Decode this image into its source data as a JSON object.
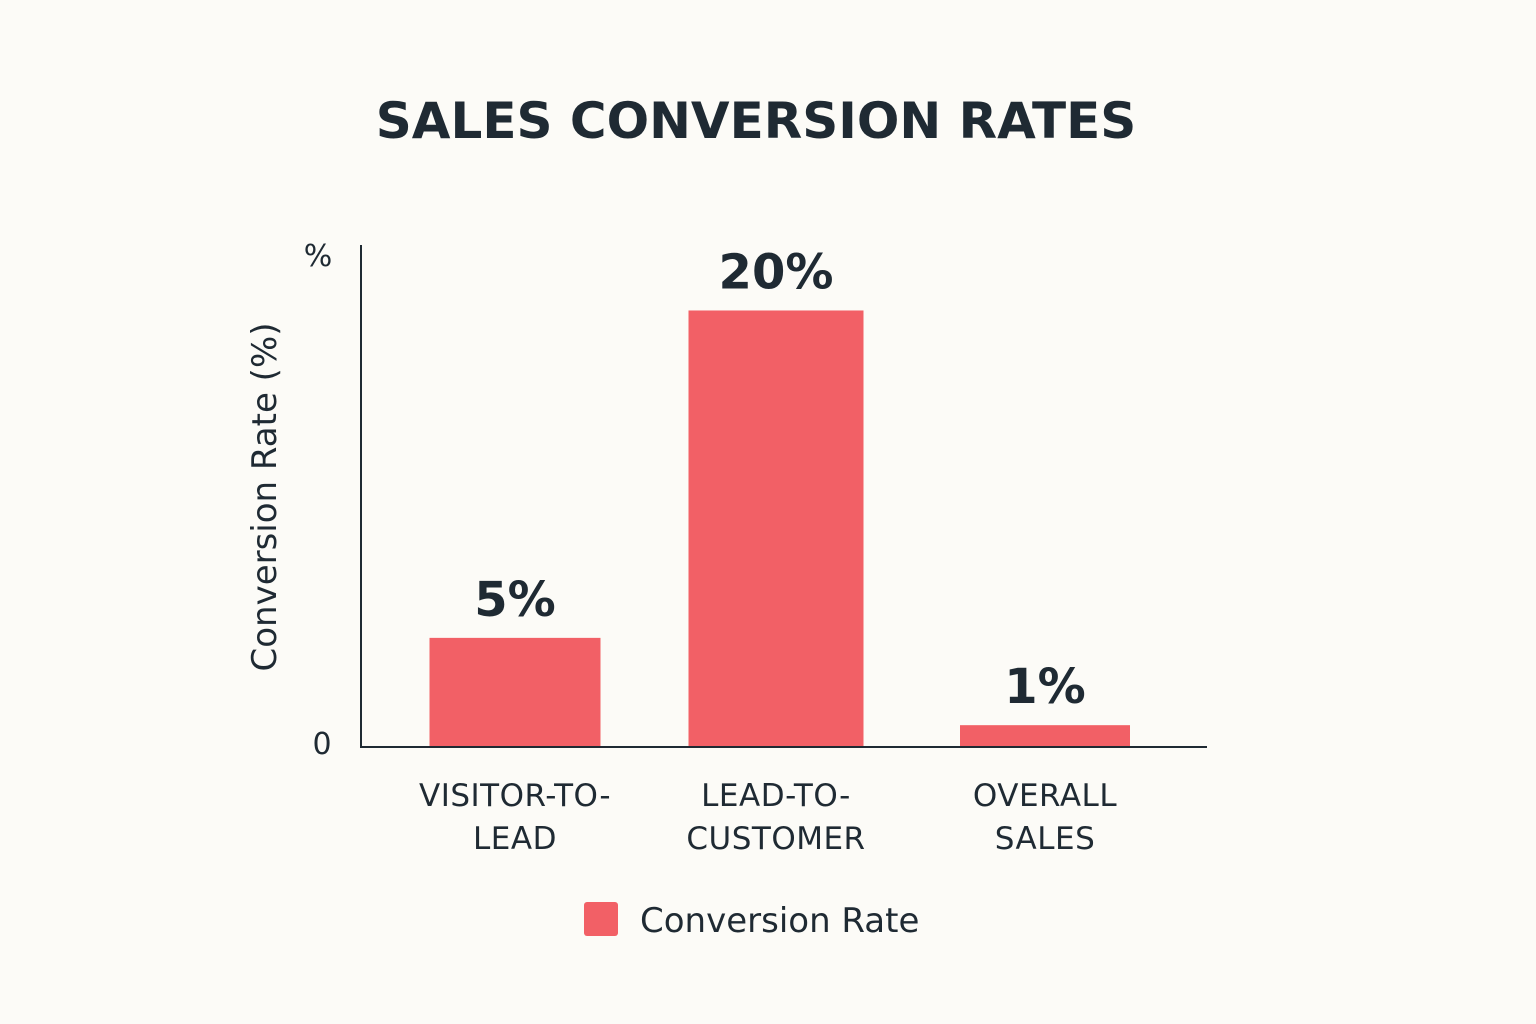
{
  "chart_data": {
    "type": "bar",
    "title": "SALES CONVERSION RATES",
    "xlabel": "",
    "ylabel": "Conversion Rate (%)",
    "ylim": [
      0,
      23
    ],
    "y_ticks": [
      "0",
      "%"
    ],
    "categories": [
      [
        "VISITOR-TO-",
        "LEAD"
      ],
      [
        "LEAD-TO-",
        "CUSTOMER"
      ],
      [
        "OVERALL",
        "SALES"
      ]
    ],
    "series": [
      {
        "name": "Conversion Rate",
        "values": [
          5,
          20,
          1
        ],
        "labels": [
          "5%",
          "20%",
          "1%"
        ],
        "color": "#f26066"
      }
    ],
    "grid": false,
    "legend": "bottom-center",
    "axis_color": "#1f2a33"
  }
}
